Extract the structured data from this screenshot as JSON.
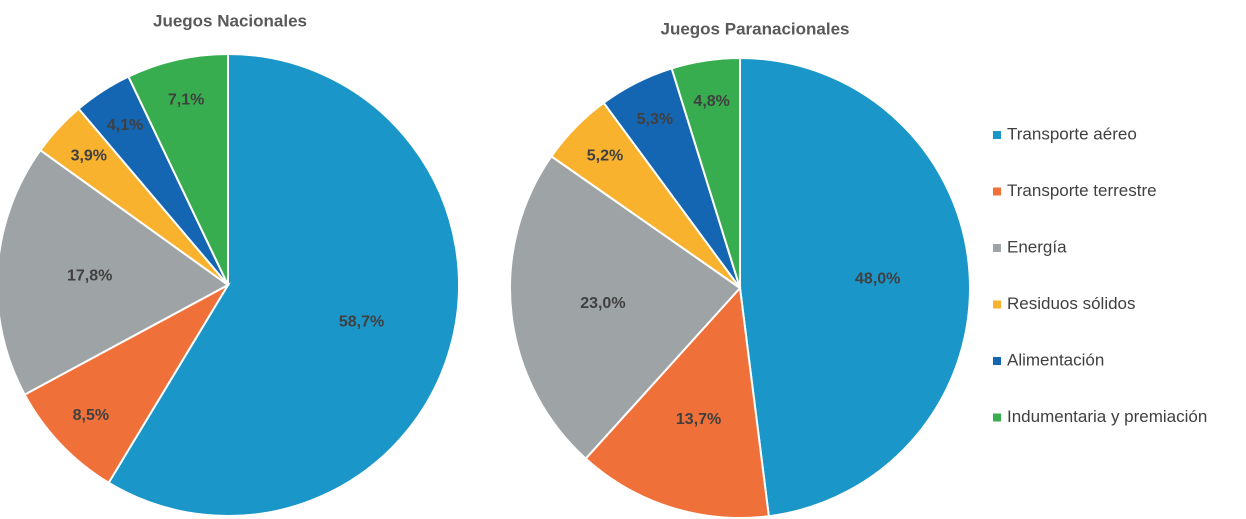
{
  "legend": {
    "categories": [
      "Transporte aéreo",
      "Transporte terrestre",
      "Energía",
      "Residuos sólidos",
      "Alimentación",
      "Indumentaria y premiación"
    ],
    "colors": [
      "#1a96c9",
      "#f0703a",
      "#9ea3a6",
      "#f8b22d",
      "#1566b2",
      "#38ad4f"
    ]
  },
  "chart_data": [
    {
      "type": "pie",
      "title": "Juegos Nacionales",
      "values": [
        58.7,
        8.5,
        17.8,
        3.9,
        4.1,
        7.1
      ],
      "value_labels": [
        "58,7%",
        "8,5%",
        "17,8%",
        "3,9%",
        "4,1%",
        "7,1%"
      ]
    },
    {
      "type": "pie",
      "title": "Juegos Paranacionales",
      "values": [
        48.0,
        13.7,
        23.0,
        5.2,
        5.3,
        4.8
      ],
      "value_labels": [
        "48,0%",
        "13,7%",
        "23,0%",
        "5,2%",
        "5,3%",
        "4,8%"
      ]
    }
  ]
}
